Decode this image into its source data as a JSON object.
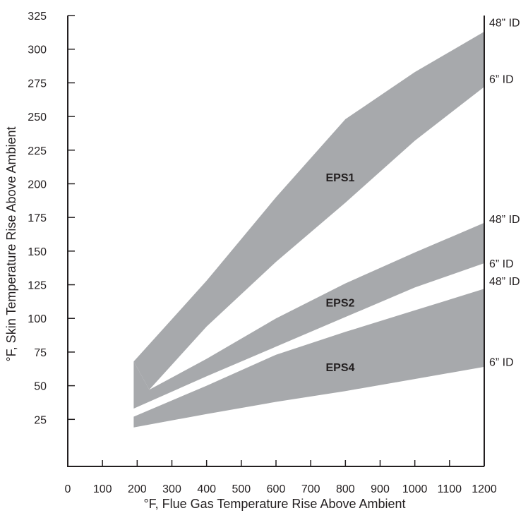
{
  "chart_data": {
    "type": "area",
    "title": "",
    "xlabel": "°F, Flue Gas Temperature Rise Above Ambient",
    "ylabel": "°F, Skin Temperature Rise Above Ambient",
    "xlim": [
      0,
      1200
    ],
    "ylim": [
      0,
      325
    ],
    "x_ticks": [
      "0",
      "100",
      "200",
      "300",
      "400",
      "500",
      "600",
      "700",
      "800",
      "900",
      "1000",
      "1100",
      "1200"
    ],
    "y_ticks": [
      "25",
      "50",
      "75",
      "100",
      "125",
      "150",
      "175",
      "200",
      "225",
      "250",
      "275",
      "300",
      "325"
    ],
    "grid": false,
    "band_color": "#a7a9ac",
    "series": [
      {
        "name": "EPS1",
        "upper_name": "48” ID",
        "lower_name": "6” ID",
        "label_at": [
          785,
          205
        ],
        "upper": [
          [
            190,
            68
          ],
          [
            400,
            128
          ],
          [
            600,
            190
          ],
          [
            800,
            248
          ],
          [
            1000,
            283
          ],
          [
            1200,
            313
          ]
        ],
        "lower": [
          [
            1200,
            272
          ],
          [
            1000,
            232
          ],
          [
            800,
            186
          ],
          [
            600,
            142
          ],
          [
            400,
            94
          ],
          [
            235,
            47
          ]
        ]
      },
      {
        "name": "EPS2",
        "upper_name": "48” ID",
        "lower_name": "6” ID",
        "label_at": [
          785,
          112
        ],
        "upper": [
          [
            190,
            68
          ],
          [
            235,
            47
          ],
          [
            400,
            70
          ],
          [
            600,
            100
          ],
          [
            800,
            126
          ],
          [
            1000,
            149
          ],
          [
            1200,
            171
          ]
        ],
        "lower": [
          [
            1200,
            141
          ],
          [
            1000,
            123
          ],
          [
            800,
            101
          ],
          [
            600,
            79
          ],
          [
            400,
            57
          ],
          [
            190,
            33
          ]
        ]
      },
      {
        "name": "EPS4",
        "upper_name": "48” ID",
        "lower_name": "6” ID",
        "label_at": [
          785,
          64
        ],
        "upper": [
          [
            190,
            27
          ],
          [
            400,
            50
          ],
          [
            600,
            73
          ],
          [
            800,
            90
          ],
          [
            1000,
            106
          ],
          [
            1200,
            122
          ]
        ],
        "lower": [
          [
            1200,
            64
          ],
          [
            1000,
            55
          ],
          [
            800,
            46
          ],
          [
            600,
            38
          ],
          [
            400,
            29
          ],
          [
            190,
            19
          ]
        ]
      }
    ],
    "end_labels": [
      {
        "text": "48” ID",
        "y": 320
      },
      {
        "text": "6” ID",
        "y": 278
      },
      {
        "text": "48” ID",
        "y": 174
      },
      {
        "text": "6” ID",
        "y": 141
      },
      {
        "text": "48” ID",
        "y": 128
      },
      {
        "text": "6” ID",
        "y": 68
      }
    ]
  }
}
